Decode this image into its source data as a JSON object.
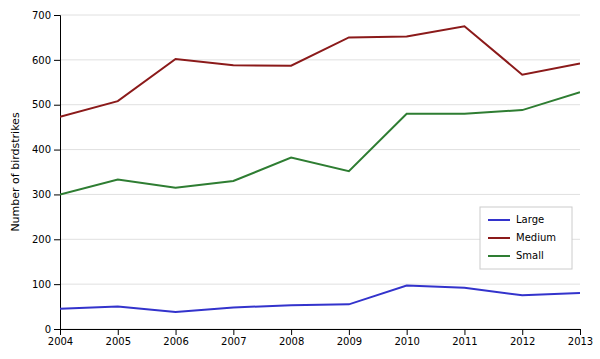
{
  "chart_data": {
    "type": "line",
    "x": [
      2004,
      2005,
      2006,
      2007,
      2008,
      2009,
      2010,
      2011,
      2012,
      2013
    ],
    "series": [
      {
        "name": "Large",
        "color": "#3333cc",
        "values": [
          45,
          50,
          38,
          48,
          53,
          55,
          97,
          92,
          75,
          80
        ]
      },
      {
        "name": "Medium",
        "color": "#8b1a1a",
        "values": [
          473,
          508,
          602,
          588,
          587,
          650,
          652,
          675,
          567,
          592
        ]
      },
      {
        "name": "Small",
        "color": "#2e7d32",
        "values": [
          300,
          333,
          315,
          330,
          382,
          352,
          480,
          480,
          488,
          528
        ]
      }
    ],
    "ylabel": "Number of birdstrikes",
    "xlim": [
      2004,
      2013
    ],
    "xticks": [
      2004,
      2005,
      2006,
      2007,
      2008,
      2009,
      2010,
      2011,
      2012,
      2013
    ],
    "ylim": [
      0,
      700
    ],
    "yticks": [
      0,
      100,
      200,
      300,
      400,
      500,
      600,
      700
    ],
    "grid": true,
    "legend": "lower right"
  }
}
